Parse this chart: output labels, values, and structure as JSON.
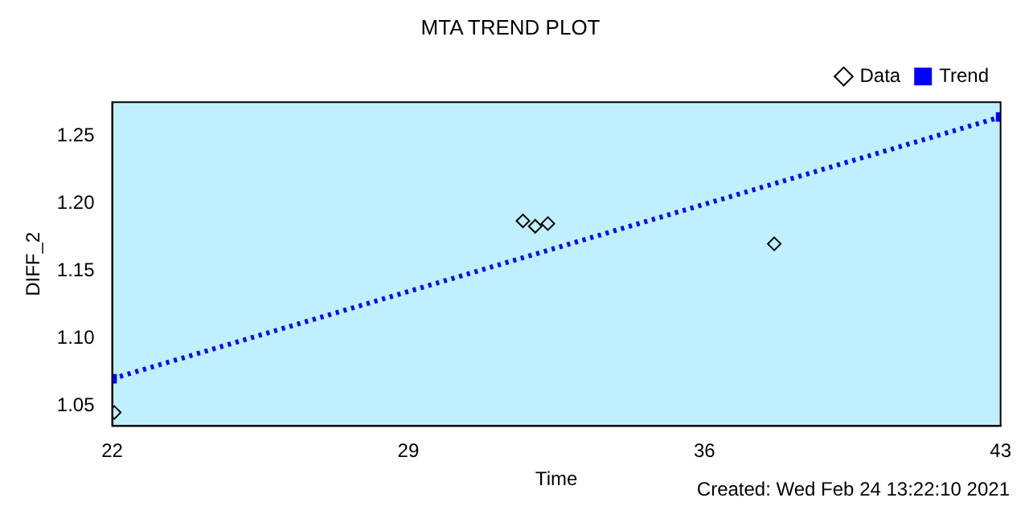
{
  "chart_data": {
    "type": "scatter",
    "title": "MTA TREND PLOT",
    "xlabel": "Time",
    "ylabel": "DIFF_2",
    "xlim": [
      22,
      43
    ],
    "xticks": [
      22,
      29,
      36,
      43
    ],
    "ylim": [
      1.035,
      1.275
    ],
    "yticks": [
      1.05,
      {
        "value": 1.1,
        "label": "1.10"
      },
      1.15,
      {
        "value": 1.2,
        "label": "1.20"
      },
      1.25
    ],
    "grid": false,
    "legend": "top right",
    "series": [
      {
        "name": "Data",
        "marker": "diamond",
        "color": "#000000",
        "x": [
          22.05,
          31.71,
          32.0,
          32.3,
          37.65
        ],
        "values": [
          1.045,
          1.187,
          1.183,
          1.185,
          1.17
        ]
      },
      {
        "name": "Trend",
        "type": "line",
        "marker": "square",
        "line_style": "dotted",
        "color": "#0000ff",
        "x": [
          22,
          43
        ],
        "values": [
          1.07,
          1.264
        ]
      }
    ],
    "annotations": [
      "Created: Wed Feb 24 13:22:10 2021"
    ]
  }
}
